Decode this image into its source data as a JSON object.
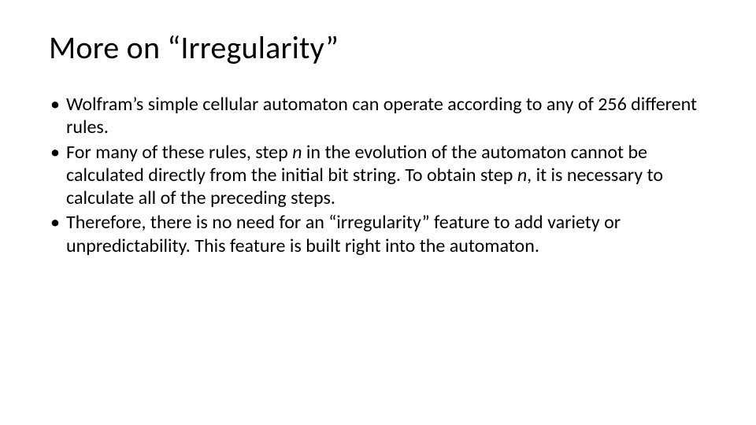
{
  "slide": {
    "title": "More on “Irregularity”",
    "bullets": [
      {
        "segments": [
          {
            "text": "Wolfram’s simple cellular automaton can operate according to any of 256 different rules.",
            "italic": false
          }
        ]
      },
      {
        "segments": [
          {
            "text": "For many of these rules, step ",
            "italic": false
          },
          {
            "text": "n",
            "italic": true
          },
          {
            "text": " in the evolution of the automaton cannot be calculated directly from the initial bit string. To obtain step ",
            "italic": false
          },
          {
            "text": "n",
            "italic": true
          },
          {
            "text": ", it is necessary to calculate all of the preceding steps.",
            "italic": false
          }
        ]
      },
      {
        "segments": [
          {
            "text": "Therefore, there is no need for an “irregularity” feature to add variety or unpredictability. This feature is built right into the automaton.",
            "italic": false
          }
        ]
      }
    ],
    "colors": {
      "background": "#ffffff",
      "text": "#000000"
    },
    "typography": {
      "title_fontsize": 40,
      "body_fontsize": 24,
      "font_family": "Calibri"
    }
  }
}
